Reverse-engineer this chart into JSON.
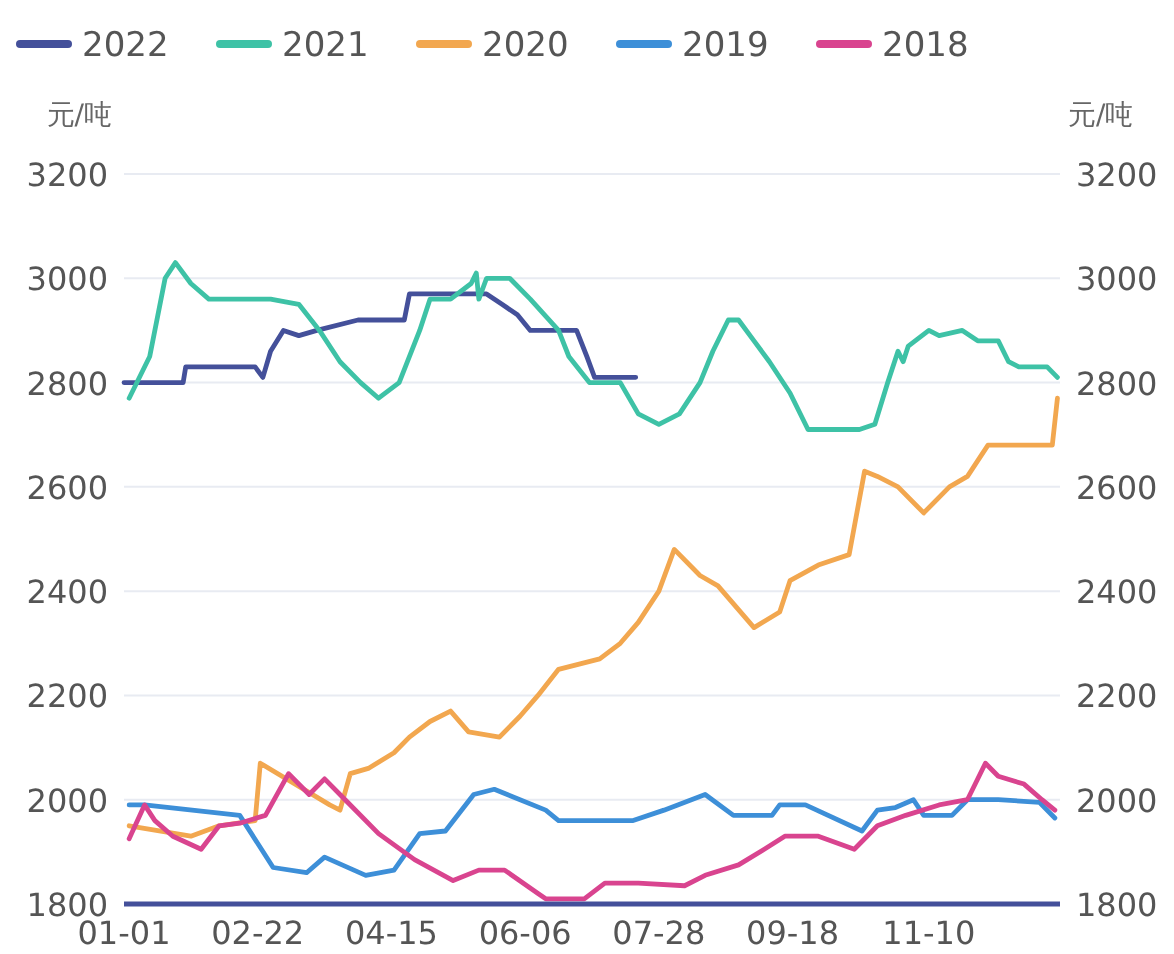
{
  "chart_data": {
    "type": "line",
    "ylabel": "元/吨",
    "y2label": "元/吨",
    "xlim": [
      "--01-01",
      "--12-31"
    ],
    "xticks": [
      {
        "value": "--01-01",
        "label": "01-01"
      },
      {
        "value": "--02-22",
        "label": "02-22"
      },
      {
        "value": "--04-15",
        "label": "04-15"
      },
      {
        "value": "--06-06",
        "label": "06-06"
      },
      {
        "value": "--07-28",
        "label": "07-28"
      },
      {
        "value": "--09-18",
        "label": "09-18"
      },
      {
        "value": "--11-10",
        "label": "11-10"
      }
    ],
    "ylim": [
      1800,
      3200
    ],
    "yticks": [
      1800,
      2000,
      2200,
      2400,
      2600,
      2800,
      3000,
      3200
    ],
    "y2lim": [
      1800,
      3200
    ],
    "y2ticks": [
      1800,
      2000,
      2200,
      2400,
      2600,
      2800,
      3000,
      3200
    ],
    "grid": "y",
    "legend": "top",
    "marker": "none",
    "line_style": "solid",
    "series": [
      {
        "name": "2022",
        "color": "#44509a",
        "x": [
          "--01-01",
          "--01-24",
          "--01-25",
          "--02-21",
          "--02-24",
          "--02-27",
          "--03-04",
          "--03-10",
          "--03-17",
          "--04-02",
          "--04-20",
          "--04-22",
          "--05-22",
          "--05-28",
          "--06-03",
          "--06-08",
          "--06-26",
          "--06-30",
          "--07-03",
          "--07-19"
        ],
        "values": [
          2800,
          2800,
          2830,
          2830,
          2810,
          2860,
          2900,
          2890,
          2900,
          2920,
          2920,
          2970,
          2970,
          2950,
          2930,
          2900,
          2900,
          2850,
          2810,
          2810
        ]
      },
      {
        "name": "2021",
        "color": "#3ec2a6",
        "x": [
          "--01-03",
          "--01-11",
          "--01-17",
          "--01-21",
          "--01-27",
          "--02-03",
          "--02-27",
          "--03-10",
          "--03-18",
          "--03-26",
          "--04-03",
          "--04-10",
          "--04-18",
          "--04-26",
          "--04-30",
          "--05-08",
          "--05-16",
          "--05-18",
          "--05-19",
          "--05-22",
          "--05-31",
          "--06-08",
          "--06-19",
          "--06-23",
          "--07-01",
          "--07-13",
          "--07-20",
          "--07-28",
          "--08-05",
          "--08-13",
          "--08-18",
          "--08-24",
          "--08-28",
          "--09-03",
          "--09-09",
          "--09-17",
          "--09-23",
          "--09-24",
          "--10-14",
          "--10-20",
          "--10-25",
          "--10-29",
          "--10-31",
          "--11-02",
          "--11-10",
          "--11-14",
          "--11-23",
          "--11-29",
          "--12-07",
          "--12-11",
          "--12-15",
          "--12-26",
          "--12-30"
        ],
        "values": [
          2770,
          2850,
          3000,
          3030,
          2990,
          2960,
          2960,
          2950,
          2900,
          2840,
          2800,
          2770,
          2800,
          2900,
          2960,
          2960,
          2990,
          3010,
          2960,
          3000,
          3000,
          2960,
          2900,
          2850,
          2800,
          2800,
          2740,
          2720,
          2740,
          2800,
          2860,
          2920,
          2920,
          2880,
          2840,
          2780,
          2720,
          2710,
          2710,
          2720,
          2800,
          2860,
          2840,
          2870,
          2900,
          2890,
          2900,
          2880,
          2880,
          2840,
          2830,
          2830,
          2810
        ]
      },
      {
        "name": "2020",
        "color": "#f2a74f",
        "x": [
          "--01-03",
          "--01-27",
          "--02-07",
          "--02-21",
          "--02-23",
          "--03-22",
          "--03-26",
          "--03-30",
          "--04-06",
          "--04-16",
          "--04-22",
          "--04-30",
          "--05-08",
          "--05-15",
          "--05-27",
          "--06-04",
          "--06-11",
          "--06-19",
          "--06-27",
          "--07-05",
          "--07-13",
          "--07-20",
          "--07-28",
          "--08-03",
          "--08-13",
          "--08-20",
          "--09-03",
          "--09-13",
          "--09-17",
          "--09-28",
          "--10-10",
          "--10-16",
          "--10-21",
          "--10-29",
          "--11-08",
          "--11-18",
          "--11-25",
          "--12-03",
          "--12-28",
          "--12-30"
        ],
        "values": [
          1950,
          1930,
          1950,
          1960,
          2070,
          1990,
          1980,
          2050,
          2060,
          2090,
          2120,
          2150,
          2170,
          2130,
          2120,
          2160,
          2200,
          2250,
          2260,
          2270,
          2300,
          2340,
          2400,
          2480,
          2430,
          2410,
          2330,
          2360,
          2420,
          2450,
          2470,
          2630,
          2620,
          2600,
          2550,
          2600,
          2620,
          2680,
          2680,
          2770
        ]
      },
      {
        "name": "2019",
        "color": "#3d8fd8",
        "x": [
          "--01-03",
          "--01-09",
          "--02-15",
          "--02-28",
          "--03-13",
          "--03-20",
          "--04-05",
          "--04-16",
          "--04-26",
          "--05-06",
          "--05-17",
          "--05-25",
          "--06-14",
          "--06-19",
          "--07-18",
          "--07-30",
          "--08-15",
          "--08-26",
          "--09-10",
          "--09-13",
          "--09-23",
          "--10-15",
          "--10-21",
          "--10-28",
          "--11-04",
          "--11-08",
          "--11-19",
          "--11-25",
          "--12-07",
          "--12-23",
          "--12-29"
        ],
        "values": [
          1990,
          1990,
          1970,
          1870,
          1860,
          1890,
          1855,
          1865,
          1935,
          1940,
          2010,
          2020,
          1980,
          1960,
          1960,
          1980,
          2010,
          1970,
          1970,
          1990,
          1990,
          1940,
          1980,
          1985,
          2000,
          1970,
          1970,
          2000,
          2000,
          1995,
          1965
        ]
      },
      {
        "name": "2018",
        "color": "#d9448f",
        "x": [
          "--01-03",
          "--01-09",
          "--01-13",
          "--01-20",
          "--01-31",
          "--02-07",
          "--02-15",
          "--02-25",
          "--03-06",
          "--03-14",
          "--03-20",
          "--03-28",
          "--04-10",
          "--04-24",
          "--05-09",
          "--05-19",
          "--05-29",
          "--06-11",
          "--06-14",
          "--06-29",
          "--07-07",
          "--07-20",
          "--08-07",
          "--08-15",
          "--08-28",
          "--09-07",
          "--09-15",
          "--09-28",
          "--10-12",
          "--10-21",
          "--11-01",
          "--11-14",
          "--11-25",
          "--12-02",
          "--12-07",
          "--12-17",
          "--12-24",
          "--12-29"
        ],
        "values": [
          1925,
          1990,
          1960,
          1930,
          1905,
          1950,
          1955,
          1970,
          2050,
          2010,
          2040,
          2000,
          1935,
          1885,
          1845,
          1865,
          1865,
          1820,
          1810,
          1810,
          1840,
          1840,
          1835,
          1855,
          1875,
          1905,
          1930,
          1930,
          1905,
          1950,
          1970,
          1990,
          2000,
          2070,
          2045,
          2030,
          2000,
          1980
        ]
      }
    ]
  }
}
